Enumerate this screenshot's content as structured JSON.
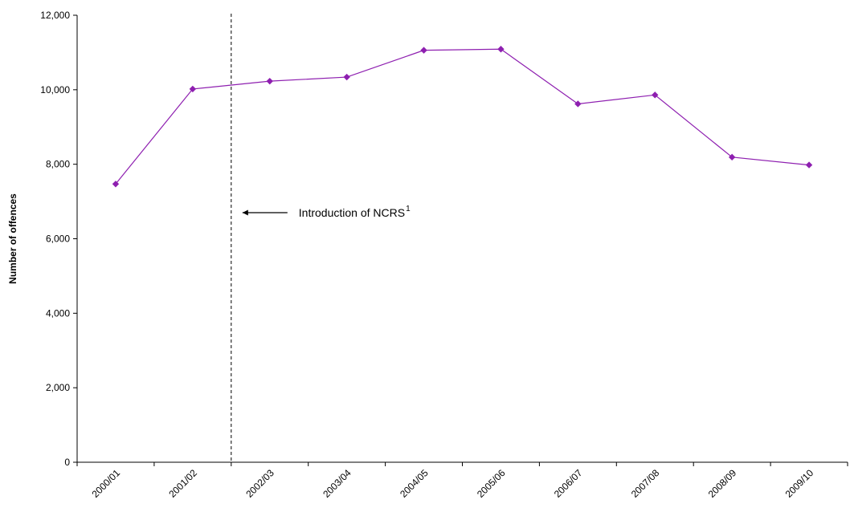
{
  "chart_data": {
    "type": "line",
    "title": "",
    "xlabel": "",
    "ylabel": "Number of offences",
    "categories": [
      "2000/01",
      "2001/02",
      "2002/03",
      "2003/04",
      "2004/05",
      "2005/06",
      "2006/07",
      "2007/08",
      "2008/09",
      "2009/10"
    ],
    "series": [
      {
        "values": [
          7470,
          10020,
          10230,
          10340,
          11060,
          11090,
          9620,
          9860,
          8190,
          7980
        ],
        "color": "#8e1fb0",
        "marker": "diamond"
      }
    ],
    "ylim": [
      0,
      12000
    ],
    "yticks": [
      0,
      2000,
      4000,
      6000,
      8000,
      10000,
      12000
    ],
    "ytick_labels": [
      "0",
      "2,000",
      "4,000",
      "6,000",
      "8,000",
      "10,000",
      "12,000"
    ],
    "grid": false,
    "legend": "none",
    "annotations": [
      {
        "text": "Introduction of NCRS",
        "superscript": "1",
        "marker_at": "boundary between 2001/02 and 2002/03",
        "marker_style": "dashed vertical line",
        "arrow": "pointing left"
      }
    ]
  }
}
